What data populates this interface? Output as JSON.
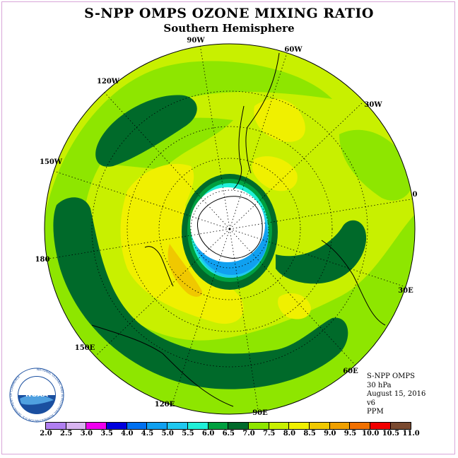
{
  "title": "S-NPP OMPS OZONE MIXING RATIO",
  "subtitle": "Southern Hemisphere",
  "map": {
    "projection": "polar stereographic, south pole centered",
    "land_color": "#000000",
    "graticule_style": "dotted",
    "longitude_labels": {
      "lon_90w": "90W",
      "lon_60w": "60W",
      "lon_30w": "30W",
      "lon_0": "0",
      "lon_30e": "30E",
      "lon_60e": "60E",
      "lon_90e": "90E",
      "lon_120e": "120E",
      "lon_150e": "150E",
      "lon_180": "180",
      "lon_150w": "150W",
      "lon_120w": "120W"
    }
  },
  "info": {
    "instrument": "S-NPP OMPS",
    "level": "30 hPa",
    "date": "August 15, 2016",
    "version": "v6",
    "units": "PPM"
  },
  "logo": {
    "text": "NOAA",
    "ring_text": "NATIONAL OCEANIC AND ATMOSPHERIC ADMINISTRATION U.S. DEPARTMENT OF COMMERCE"
  },
  "colorbar": {
    "colors": [
      "#b07ff0",
      "#d8b4f0",
      "#ee00ee",
      "#0000dd",
      "#0070f0",
      "#10a0f0",
      "#1fc8f0",
      "#20f0d8",
      "#00a040",
      "#006a2a",
      "#8ee600",
      "#c8f000",
      "#f0f000",
      "#f0c800",
      "#f0a000",
      "#f07000",
      "#f00000",
      "#7a4a30"
    ],
    "labels": [
      "2.0",
      "2.5",
      "3.0",
      "3.5",
      "4.0",
      "4.5",
      "5.0",
      "5.5",
      "6.0",
      "6.5",
      "7.0",
      "7.5",
      "8.0",
      "8.5",
      "9.0",
      "9.5",
      "10.0",
      "10.5",
      "11.0"
    ]
  }
}
